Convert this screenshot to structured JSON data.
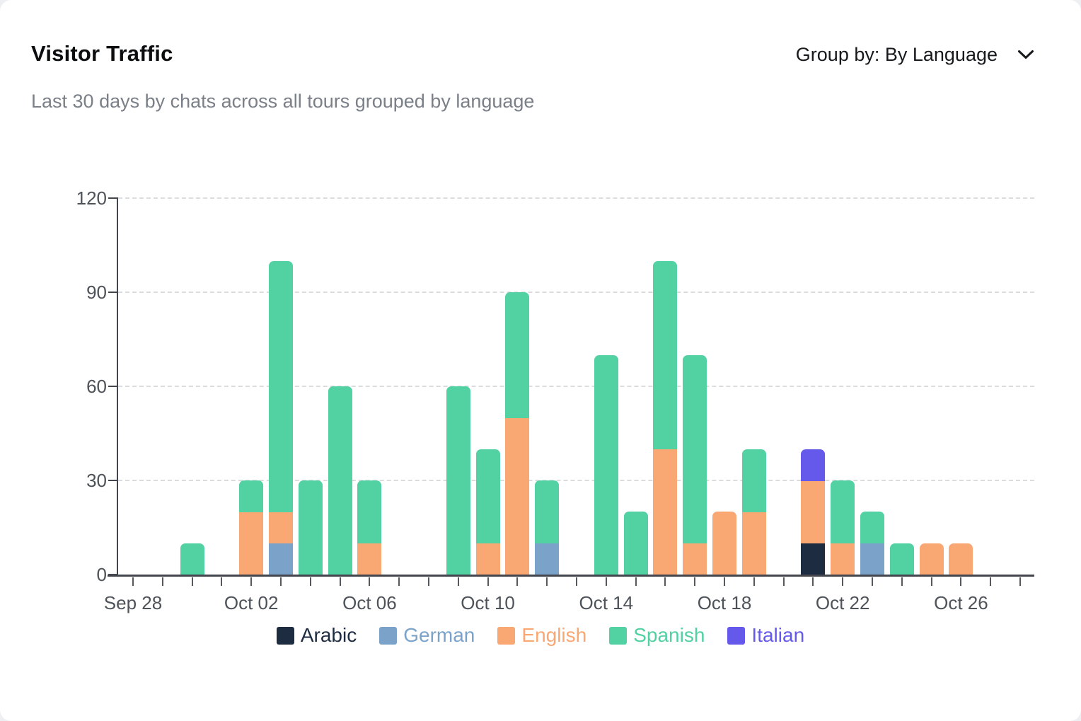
{
  "page": {
    "background": "#edeff2",
    "card_background": "#ffffff"
  },
  "header": {
    "title": "Visitor Traffic",
    "subtitle": "Last 30 days by chats across all tours grouped by language",
    "group_by": {
      "label": "Group by: By Language",
      "icon": "chevron-down-icon"
    }
  },
  "chart_data": {
    "type": "bar",
    "stacked": true,
    "title": "Visitor Traffic",
    "xlabel": "",
    "ylabel": "",
    "ylim": [
      0,
      120
    ],
    "yticks": [
      0,
      30,
      60,
      90,
      120
    ],
    "grid": "dashed-horizontal",
    "legend_position": "bottom-center",
    "x_label_every": 4,
    "categories": [
      "Sep 28",
      "Sep 29",
      "Sep 30",
      "Oct 01",
      "Oct 02",
      "Oct 03",
      "Oct 04",
      "Oct 05",
      "Oct 06",
      "Oct 07",
      "Oct 08",
      "Oct 09",
      "Oct 10",
      "Oct 11",
      "Oct 12",
      "Oct 13",
      "Oct 14",
      "Oct 15",
      "Oct 16",
      "Oct 17",
      "Oct 18",
      "Oct 19",
      "Oct 20",
      "Oct 21",
      "Oct 22",
      "Oct 23",
      "Oct 24",
      "Oct 25",
      "Oct 26",
      "Oct 27",
      "Oct 28"
    ],
    "series": [
      {
        "name": "Arabic",
        "color": "#1e2c42",
        "values": [
          0,
          0,
          0,
          0,
          0,
          0,
          0,
          0,
          0,
          0,
          0,
          0,
          0,
          0,
          0,
          0,
          0,
          0,
          0,
          0,
          0,
          0,
          0,
          10,
          0,
          0,
          0,
          0,
          0,
          0,
          0
        ]
      },
      {
        "name": "German",
        "color": "#7ba3c9",
        "values": [
          0,
          0,
          0,
          0,
          0,
          10,
          0,
          0,
          0,
          0,
          0,
          0,
          0,
          0,
          10,
          0,
          0,
          0,
          0,
          0,
          0,
          0,
          0,
          0,
          0,
          10,
          0,
          0,
          0,
          0,
          0
        ]
      },
      {
        "name": "English",
        "color": "#f9a873",
        "values": [
          0,
          0,
          0,
          0,
          20,
          10,
          0,
          0,
          10,
          0,
          0,
          0,
          10,
          50,
          0,
          0,
          0,
          0,
          40,
          10,
          20,
          20,
          0,
          20,
          10,
          0,
          0,
          10,
          10,
          0,
          0
        ]
      },
      {
        "name": "Spanish",
        "color": "#52d1a2",
        "values": [
          0,
          0,
          10,
          0,
          10,
          80,
          30,
          60,
          20,
          0,
          0,
          60,
          30,
          40,
          20,
          0,
          70,
          20,
          60,
          60,
          0,
          20,
          0,
          0,
          20,
          10,
          10,
          0,
          0,
          0,
          0
        ]
      },
      {
        "name": "Italian",
        "color": "#6459ea",
        "values": [
          0,
          0,
          0,
          0,
          0,
          0,
          0,
          0,
          0,
          0,
          0,
          0,
          0,
          0,
          0,
          0,
          0,
          0,
          0,
          0,
          0,
          0,
          0,
          10,
          0,
          0,
          0,
          0,
          0,
          0,
          0
        ]
      }
    ]
  },
  "colors": {
    "axis": "#43474d",
    "grid": "#dbdcde",
    "tick_label": "#4e535a",
    "title": "#0c0d0e",
    "subtitle": "#7a7f88",
    "group_by_text": "#17191c"
  }
}
